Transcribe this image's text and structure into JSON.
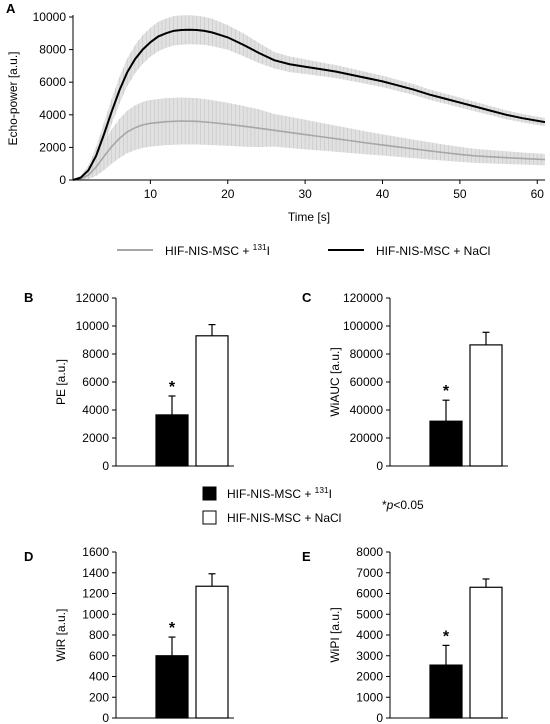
{
  "chart_data": [
    {
      "panel": "A",
      "type": "line",
      "xlabel": "Time [s]",
      "ylabel": "Echo-power [a.u.]",
      "xlim": [
        0,
        61
      ],
      "ylim": [
        0,
        10000
      ],
      "xticks": [
        10,
        20,
        30,
        40,
        50,
        60
      ],
      "yticks": [
        0,
        2000,
        4000,
        6000,
        8000,
        10000
      ],
      "legend_position": "bottom",
      "series": [
        {
          "name": "HIF-NIS-MSC + ¹³¹I",
          "color": "#a6a6a6",
          "x": [
            0,
            1,
            2,
            3,
            4,
            5,
            6,
            7,
            8,
            9,
            10,
            12,
            14,
            16,
            18,
            20,
            22,
            24,
            26,
            28,
            30,
            32,
            34,
            36,
            38,
            40,
            42,
            44,
            46,
            48,
            50,
            52,
            54,
            56,
            58,
            61
          ],
          "y": [
            0,
            80,
            300,
            800,
            1450,
            2050,
            2550,
            2950,
            3200,
            3380,
            3480,
            3580,
            3620,
            3600,
            3520,
            3420,
            3300,
            3180,
            3050,
            2920,
            2790,
            2660,
            2530,
            2400,
            2270,
            2150,
            2030,
            1910,
            1790,
            1680,
            1570,
            1480,
            1420,
            1370,
            1320,
            1250
          ],
          "error": [
            0,
            80,
            250,
            550,
            850,
            1050,
            1200,
            1300,
            1370,
            1410,
            1430,
            1440,
            1440,
            1420,
            1380,
            1320,
            1250,
            1160,
            1000,
            960,
            910,
            850,
            800,
            750,
            700,
            650,
            610,
            570,
            530,
            490,
            460,
            430,
            410,
            390,
            370,
            350
          ]
        },
        {
          "name": "HIF-NIS-MSC + NaCl",
          "color": "#000000",
          "x": [
            0,
            1,
            2,
            3,
            4,
            5,
            6,
            7,
            8,
            9,
            10,
            11,
            12,
            13,
            14,
            15,
            16,
            17,
            18,
            19,
            20,
            22,
            24,
            26,
            28,
            30,
            32,
            34,
            36,
            38,
            40,
            42,
            44,
            46,
            48,
            50,
            52,
            54,
            56,
            58,
            61
          ],
          "y": [
            0,
            150,
            600,
            1500,
            2800,
            4200,
            5500,
            6600,
            7400,
            8000,
            8450,
            8800,
            9000,
            9150,
            9200,
            9220,
            9200,
            9150,
            9050,
            8900,
            8750,
            8300,
            7800,
            7350,
            7100,
            6950,
            6800,
            6650,
            6450,
            6250,
            6050,
            5800,
            5550,
            5250,
            5000,
            4750,
            4500,
            4250,
            4000,
            3800,
            3550
          ],
          "error": [
            0,
            100,
            300,
            550,
            700,
            780,
            820,
            850,
            870,
            880,
            890,
            900,
            900,
            900,
            900,
            890,
            880,
            860,
            840,
            800,
            750,
            700,
            620,
            500,
            480,
            450,
            420,
            400,
            380,
            360,
            350,
            340,
            330,
            320,
            310,
            300,
            290,
            280,
            270,
            260,
            250
          ]
        }
      ]
    },
    {
      "panel": "B",
      "type": "bar",
      "ylabel": "PE [a.u.]",
      "ylim": [
        0,
        12000
      ],
      "yticks": [
        0,
        2000,
        4000,
        6000,
        8000,
        10000,
        12000
      ],
      "bars": [
        {
          "group": "HIF-NIS-MSC + ¹³¹I",
          "value": 3650,
          "error": 1350,
          "fill": "#000000",
          "annotation": "*"
        },
        {
          "group": "HIF-NIS-MSC + NaCl",
          "value": 9300,
          "error": 800,
          "fill": "#ffffff",
          "annotation": ""
        }
      ]
    },
    {
      "panel": "C",
      "type": "bar",
      "ylabel": "WiAUC [a.u.]",
      "ylim": [
        0,
        120000
      ],
      "yticks": [
        0,
        20000,
        40000,
        60000,
        80000,
        100000,
        120000
      ],
      "bars": [
        {
          "group": "HIF-NIS-MSC + ¹³¹I",
          "value": 32000,
          "error": 15000,
          "fill": "#000000",
          "annotation": "*"
        },
        {
          "group": "HIF-NIS-MSC + NaCl",
          "value": 86500,
          "error": 9000,
          "fill": "#ffffff",
          "annotation": ""
        }
      ]
    },
    {
      "panel": "D",
      "type": "bar",
      "ylabel": "WiR [a.u.]",
      "ylim": [
        0,
        1600
      ],
      "yticks": [
        0,
        200,
        400,
        600,
        800,
        1000,
        1200,
        1400,
        1600
      ],
      "bars": [
        {
          "group": "HIF-NIS-MSC + ¹³¹I",
          "value": 600,
          "error": 180,
          "fill": "#000000",
          "annotation": "*"
        },
        {
          "group": "HIF-NIS-MSC + NaCl",
          "value": 1270,
          "error": 120,
          "fill": "#ffffff",
          "annotation": ""
        }
      ]
    },
    {
      "panel": "E",
      "type": "bar",
      "ylabel": "WiPI [a.u.]",
      "ylim": [
        0,
        8000
      ],
      "yticks": [
        0,
        1000,
        2000,
        3000,
        4000,
        5000,
        6000,
        7000,
        8000
      ],
      "bars": [
        {
          "group": "HIF-NIS-MSC + ¹³¹I",
          "value": 2550,
          "error": 950,
          "fill": "#000000",
          "annotation": "*"
        },
        {
          "group": "HIF-NIS-MSC + NaCl",
          "value": 6300,
          "error": 400,
          "fill": "#ffffff",
          "annotation": ""
        }
      ]
    }
  ],
  "legend_bar": [
    {
      "label_pre": "HIF-NIS-MSC + ",
      "label_sup": "131",
      "label_post": "I",
      "fill": "#000000"
    },
    {
      "label_pre": "HIF-NIS-MSC + NaCl",
      "label_sup": "",
      "label_post": "",
      "fill": "#ffffff"
    }
  ],
  "legend_line": [
    {
      "label_pre": "HIF-NIS-MSC + ",
      "label_sup": "131",
      "label_post": "I",
      "color": "#a6a6a6"
    },
    {
      "label_pre": "HIF-NIS-MSC + NaCl",
      "label_sup": "",
      "label_post": "",
      "color": "#000000"
    }
  ],
  "significance": {
    "prefix": "*",
    "var": "p",
    "suffix": "<0.05"
  }
}
